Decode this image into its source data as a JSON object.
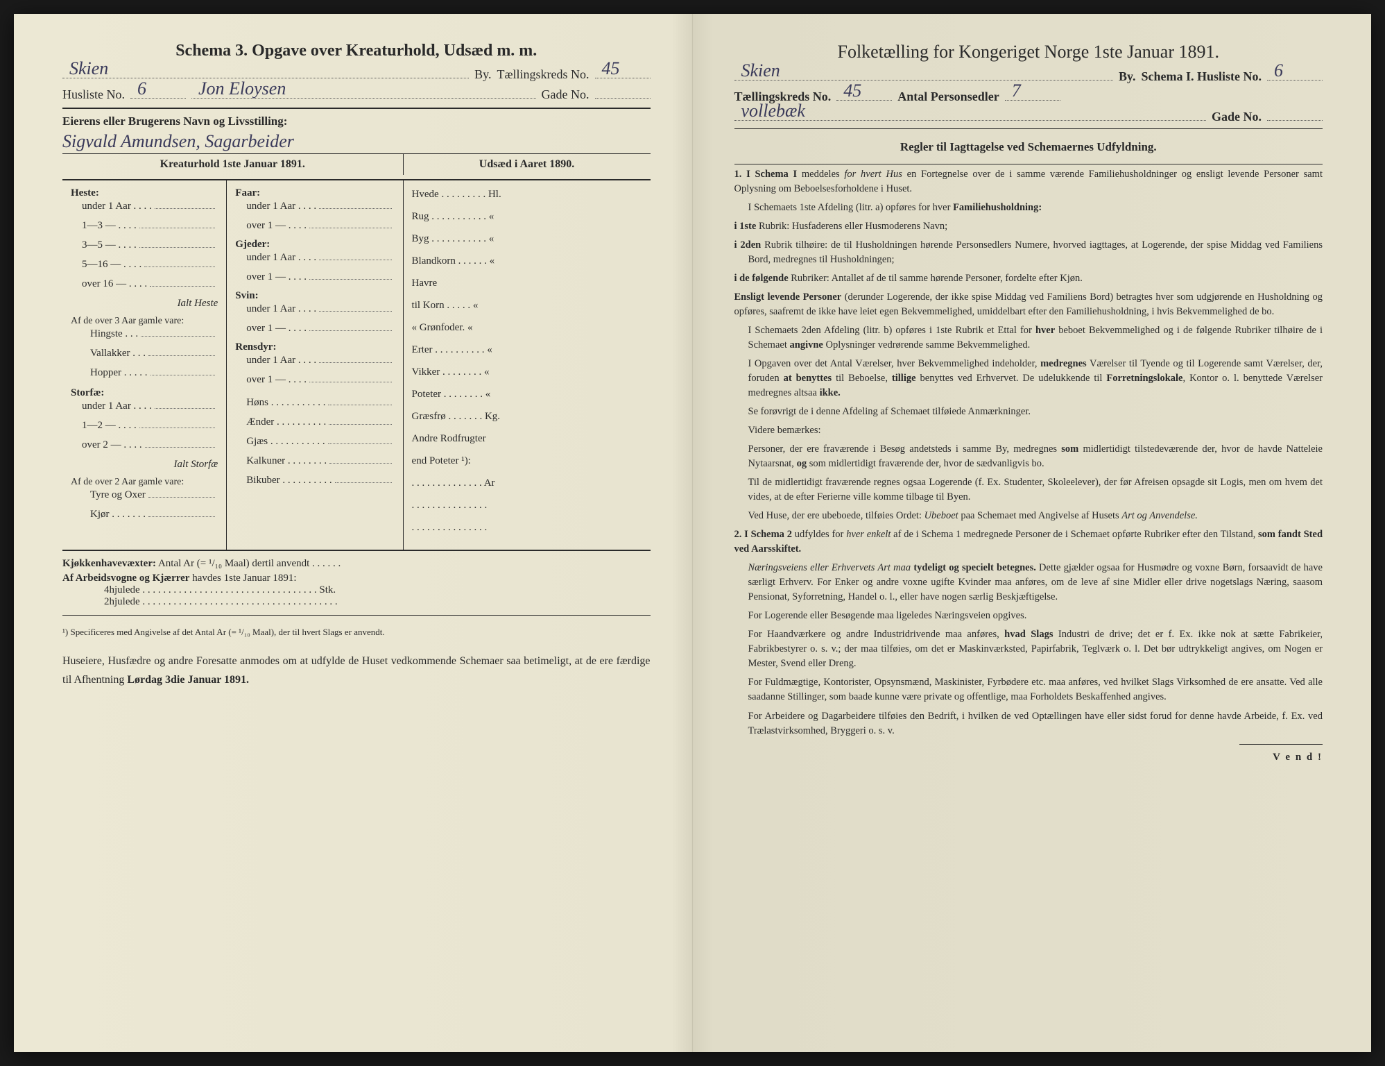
{
  "left": {
    "title": "Schema 3.  Opgave over Kreaturhold, Udsæd m. m.",
    "by_label": "By.",
    "by_value": "Skien",
    "tk_label": "Tællingskreds No.",
    "tk_value": "45",
    "husliste_label": "Husliste No.",
    "husliste_value": "6",
    "gade_mid_value": "Jon Eloysen",
    "gade_label": "Gade No.",
    "gade_value": "",
    "owner_label": "Eierens eller Brugerens Navn og Livsstilling:",
    "owner_value": "Sigvald Amundsen, Sagarbeider",
    "kreatur_header": "Kreaturhold 1ste Januar 1891.",
    "udsaed_header": "Udsæd i Aaret 1890.",
    "heste": {
      "title": "Heste:",
      "rows": [
        "under 1 Aar . . . .",
        "1—3   —   . . . .",
        "3—5   —   . . . .",
        "5—16  —   . . . .",
        "over 16 —   . . . ."
      ],
      "ialt": "Ialt Heste",
      "sub_label": "Af de over 3 Aar gamle vare:",
      "sub_rows": [
        "Hingste . . .",
        "Vallakker . . .",
        "Hopper . . . . ."
      ]
    },
    "storfae": {
      "title": "Storfæ:",
      "rows": [
        "under 1 Aar . . . .",
        "1—2   —   . . . .",
        "over 2   —   . . . ."
      ],
      "ialt": "Ialt Storfæ",
      "sub_label": "Af de over 2 Aar gamle vare:",
      "sub_rows": [
        "Tyre og Oxer",
        "Kjør . . . . . . ."
      ]
    },
    "faar": {
      "title": "Faar:",
      "rows": [
        "under 1 Aar . . . .",
        "over 1   —   . . . ."
      ]
    },
    "gjeder": {
      "title": "Gjeder:",
      "rows": [
        "under 1 Aar . . . .",
        "over 1   —   . . . ."
      ]
    },
    "svin": {
      "title": "Svin:",
      "rows": [
        "under 1 Aar . . . .",
        "over 1   —   . . . ."
      ]
    },
    "rensdyr": {
      "title": "Rensdyr:",
      "rows": [
        "under 1 Aar . . . .",
        "over 1   —   . . . ."
      ]
    },
    "other_animals": [
      "Høns . . . . . . . . . . .",
      "Ænder . . . . . . . . . .",
      "Gjæs . . . . . . . . . . .",
      "Kalkuner . . . . . . . .",
      "Bikuber . . . . . . . . . ."
    ],
    "crops": [
      "Hvede . . . . . . . . . Hl.",
      "Rug . . . . . . . . . . .  «",
      "Byg . . . . . . . . . . .  «",
      "Blandkorn . . . . . .  «",
      "Havre",
      "   til Korn . . . . .  «",
      "   «  Grønfoder.  «",
      "Erter . . . . . . . . . .  «",
      "Vikker . . . . . . . .  «",
      "Poteter . . . . . . . .  «",
      "Græsfrø . . . . . . . Kg.",
      "Andre Rodfrugter",
      "  end Poteter ¹):",
      ". . . . . . . . . . . . . . Ar",
      ". . . . . . . . . . . . . . .",
      ". . . . . . . . . . . . . . ."
    ],
    "kjokken_label": "Kjøkkenhavevæxter:",
    "kjokken_text": "Antal Ar (= ¹/₁₀ Maal) dertil anvendt . . . . . .",
    "arbeids_label": "Af Arbeidsvogne og Kjærrer",
    "arbeids_text": "havdes 1ste Januar 1891:",
    "arbeids_rows": [
      "4hjulede . . . . . . . . . . . . . . . . . . . . . . . . . . . . . . . . . . Stk.",
      "2hjulede . . . . . . . . . . . . . . . . . . . . . . . . . . . . . . . . . . . . . ."
    ],
    "footnote": "¹) Specificeres med Angivelse af det Antal Ar (= ¹/₁₀ Maal), der til hvert Slags er anvendt.",
    "instruction1": "Huseiere, Husfædre og andre Foresatte anmodes om at udfylde de Huset vedkommende Schemaer saa betimeligt, at de ere færdige til Afhentning",
    "instruction_bold": "Lørdag 3die Januar 1891."
  },
  "right": {
    "title": "Folketælling for Kongeriget Norge 1ste Januar 1891.",
    "by_value": "Skien",
    "by_label": "By.",
    "schema_label": "Schema I.  Husliste No.",
    "husliste_value": "6",
    "tk_label": "Tællingskreds No.",
    "tk_value": "45",
    "antal_label": "Antal Personsedler",
    "antal_value": "7",
    "gade_value": "vollebæk",
    "gade_label": "Gade No.",
    "rules_heading": "Regler til Iagttagelse ved Schemaernes Udfyldning.",
    "vend": "V e n d !"
  }
}
